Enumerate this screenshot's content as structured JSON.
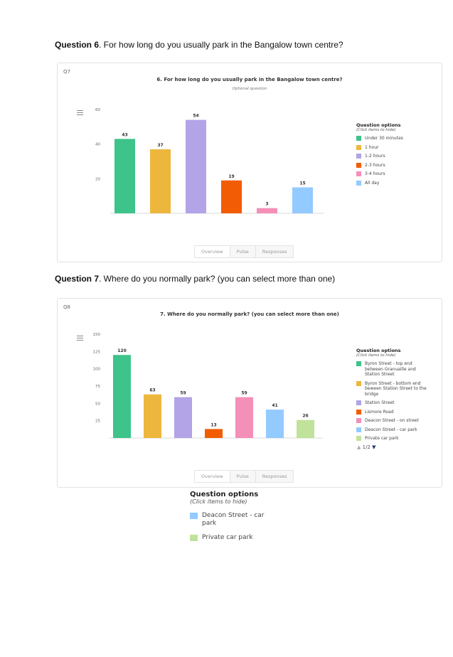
{
  "q6": {
    "heading_bold": "Question 6",
    "heading_rest": ". For how long do you usually park in the Bangalow town centre?",
    "tag": "Q7",
    "chart_title": "6. For how long do you usually park in the Bangalow town centre?",
    "chart_subtitle": "Optional question",
    "legend_title": "Question options",
    "legend_hint": "(Click items to hide)",
    "tabs": [
      "Overview",
      "Pulse",
      "Responses"
    ]
  },
  "q7": {
    "heading_bold": "Question 7",
    "heading_rest": ". Where do you normally park? (you can select more than one)",
    "tag": "Q8",
    "chart_title": "7. Where do you normally park? (you can select more than one)",
    "legend_title": "Question options",
    "legend_hint": "(Click items to hide)",
    "pager": "1/2",
    "tabs": [
      "Overview",
      "Pulse",
      "Responses"
    ]
  },
  "legend_page2": {
    "title": "Question options",
    "hint": "(Click items to hide)"
  },
  "chart_data": [
    {
      "type": "bar",
      "title": "6. For how long do you usually park in the Bangalow town centre?",
      "subtitle": "Optional question",
      "categories": [
        "Under 30 minutes",
        "1 hour",
        "1-2 hours",
        "2-3 hours",
        "3-4 hours",
        "All day"
      ],
      "values": [
        43,
        37,
        54,
        19,
        3,
        15
      ],
      "colors": [
        "#3ec38a",
        "#edb73e",
        "#b2a4e6",
        "#f25c05",
        "#f48fb8",
        "#93caff"
      ],
      "yticks": [
        20,
        40,
        60
      ],
      "ylim": [
        0,
        60
      ],
      "grid": false,
      "legend": "right"
    },
    {
      "type": "bar",
      "title": "7. Where do you normally park? (you can select more than one)",
      "categories": [
        "Byron Street - top end between Granuaille and Station Street",
        "Byron Street - bottom end beween Station Street to the bridge",
        "Station Street",
        "Lismore Road",
        "Deacon Street - on street",
        "Deacon Street - car park",
        "Private car park"
      ],
      "values": [
        120,
        63,
        59,
        13,
        59,
        41,
        26
      ],
      "colors": [
        "#3ec38a",
        "#edb73e",
        "#b2a4e6",
        "#f25c05",
        "#f48fb8",
        "#93caff",
        "#c0e29a"
      ],
      "yticks": [
        25,
        50,
        75,
        100,
        125,
        150
      ],
      "ylim": [
        0,
        150
      ],
      "grid": false,
      "legend": "right",
      "legend_visible_count": 5
    }
  ]
}
